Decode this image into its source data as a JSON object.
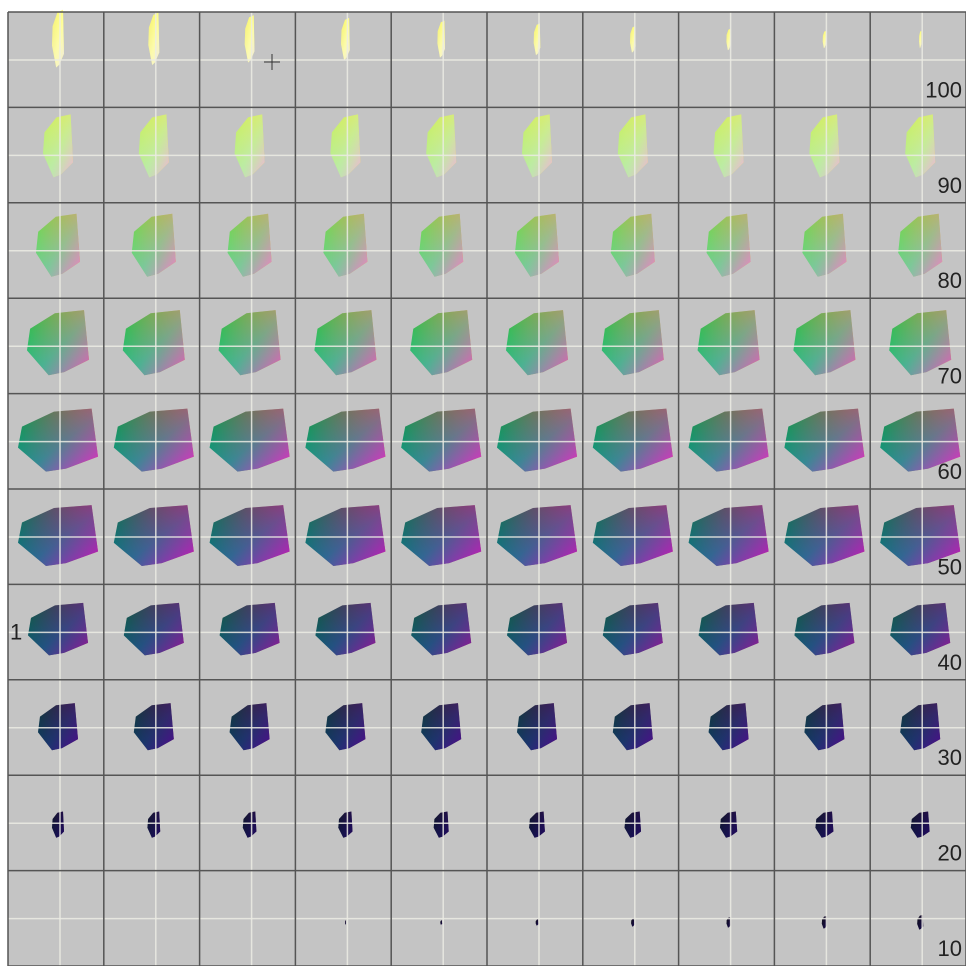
{
  "row_labels": [
    "100",
    "90",
    "80",
    "70",
    "60",
    "50",
    "40",
    "30",
    "20",
    "10"
  ],
  "side_label": "1"
}
